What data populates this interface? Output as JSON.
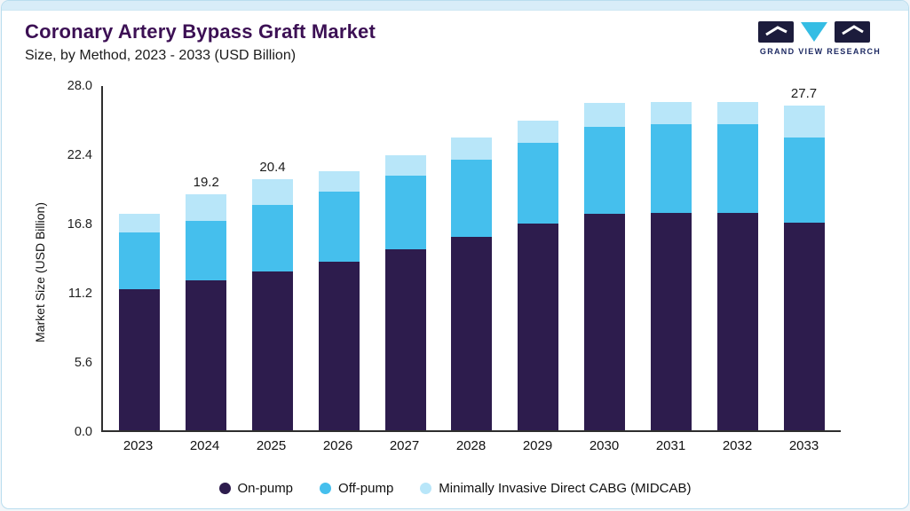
{
  "header": {
    "title": "Coronary Artery Bypass Graft Market",
    "subtitle": "Size, by Method, 2023 - 2033 (USD Billion)",
    "logo_text": "GRAND VIEW RESEARCH"
  },
  "colors": {
    "title": "#3c1054",
    "on_pump": "#2d1c4d",
    "off_pump": "#45bfed",
    "midcab": "#b8e6f9",
    "top_strip": "#d8edf8",
    "logo_navy": "#1c1c3c",
    "logo_cyan": "#35bde4"
  },
  "chart_data": {
    "type": "bar",
    "stacked": true,
    "title": "Coronary Artery Bypass Graft Market Size, by Method, 2023 - 2033 (USD Billion)",
    "xlabel": "",
    "ylabel": "Market Size (USD Billion)",
    "ylim": [
      0,
      28
    ],
    "yticks": [
      0.0,
      5.6,
      11.2,
      16.8,
      22.4,
      28.0
    ],
    "grid": false,
    "legend_position": "bottom",
    "categories": [
      "2023",
      "2024",
      "2025",
      "2026",
      "2027",
      "2028",
      "2029",
      "2030",
      "2031",
      "2032",
      "2033"
    ],
    "series": [
      {
        "name": "On-pump",
        "color": "#2d1c4d",
        "values": [
          11.5,
          12.2,
          12.9,
          13.7,
          14.7,
          15.7,
          16.8,
          17.6,
          17.7,
          17.7,
          17.7
        ]
      },
      {
        "name": "Off-pump",
        "color": "#45bfed",
        "values": [
          4.6,
          4.8,
          5.4,
          5.7,
          6.0,
          6.3,
          6.6,
          7.1,
          7.2,
          7.2,
          7.3
        ]
      },
      {
        "name": "Minimally Invasive Direct CABG (MIDCAB)",
        "color": "#b8e6f9",
        "values": [
          1.5,
          2.2,
          2.1,
          1.7,
          1.7,
          1.8,
          1.8,
          1.9,
          1.8,
          1.8,
          2.7
        ]
      }
    ],
    "annotations": [
      {
        "category": "2024",
        "label": "19.2"
      },
      {
        "category": "2025",
        "label": "20.4"
      },
      {
        "category": "2033",
        "label": "27.7"
      }
    ]
  }
}
